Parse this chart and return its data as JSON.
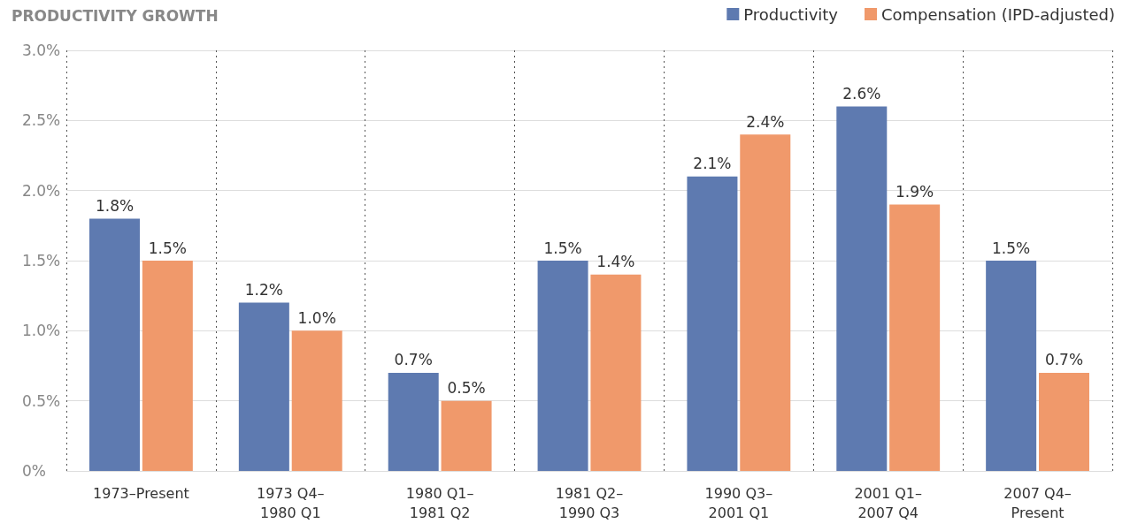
{
  "chart_data": {
    "type": "bar",
    "title": "PRODUCTIVITY GROWTH",
    "categories": [
      "1973–Present",
      "1973 Q4–\n1980 Q1",
      "1980 Q1–\n1981 Q2",
      "1981 Q2–\n1990 Q3",
      "1990 Q3–\n2001 Q1",
      "2001 Q1–\n2007 Q4",
      "2007 Q4–\nPresent"
    ],
    "series": [
      {
        "name": "Productivity",
        "color": "#5e7ab0",
        "values": [
          1.8,
          1.2,
          0.7,
          1.5,
          2.1,
          2.6,
          1.5
        ],
        "value_labels": [
          "1.8%",
          "1.2%",
          "0.7%",
          "1.5%",
          "2.1%",
          "2.6%",
          "1.5%"
        ]
      },
      {
        "name": "Compensation (IPD-adjusted)",
        "color": "#f0996b",
        "values": [
          1.5,
          1.0,
          0.5,
          1.4,
          2.4,
          1.9,
          0.7
        ],
        "value_labels": [
          "1.5%",
          "1.0%",
          "0.5%",
          "1.4%",
          "2.4%",
          "1.9%",
          "0.7%"
        ]
      }
    ],
    "ylim": [
      0,
      3
    ],
    "yticks": [
      {
        "value": 0,
        "label": "0%"
      },
      {
        "value": 0.5,
        "label": "0.5%"
      },
      {
        "value": 1,
        "label": "1.0%"
      },
      {
        "value": 1.5,
        "label": "1.5%"
      },
      {
        "value": 2,
        "label": "2.0%"
      },
      {
        "value": 2.5,
        "label": "2.5%"
      },
      {
        "value": 3,
        "label": "3.0%"
      }
    ],
    "grid": true,
    "legend": "top right"
  }
}
